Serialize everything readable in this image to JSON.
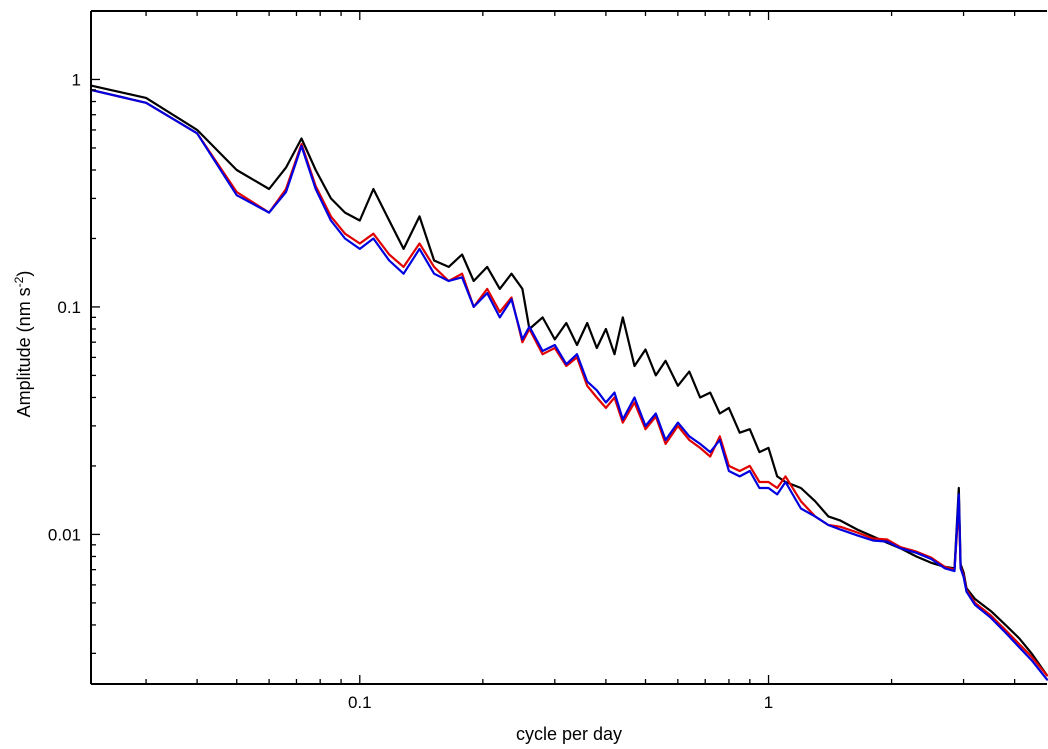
{
  "chart_data": {
    "type": "line",
    "title": "",
    "xlabel": "cycle per day",
    "ylabel": "Amplitude (nm s^-2)",
    "ylabel_parts": {
      "pre": "Amplitude (nm s",
      "sup": "-2",
      "post": ")"
    },
    "x_scale": "log",
    "y_scale": "log",
    "xlim": [
      0.022,
      4.8
    ],
    "ylim": [
      0.0022,
      2.0
    ],
    "x_ticks": [
      {
        "value": 0.1,
        "label": "0.1"
      },
      {
        "value": 1,
        "label": "1"
      }
    ],
    "y_ticks": [
      {
        "value": 1,
        "label": "1"
      },
      {
        "value": 0.1,
        "label": "0.1"
      },
      {
        "value": 0.01,
        "label": "0.01"
      }
    ],
    "grid": false,
    "series": [
      {
        "color": "#000000",
        "x": [
          0.022,
          0.03,
          0.04,
          0.05,
          0.06,
          0.066,
          0.072,
          0.078,
          0.085,
          0.092,
          0.1,
          0.108,
          0.118,
          0.128,
          0.14,
          0.152,
          0.165,
          0.178,
          0.19,
          0.205,
          0.22,
          0.235,
          0.25,
          0.26,
          0.28,
          0.3,
          0.32,
          0.34,
          0.36,
          0.38,
          0.4,
          0.42,
          0.44,
          0.47,
          0.5,
          0.53,
          0.56,
          0.6,
          0.64,
          0.68,
          0.72,
          0.76,
          0.8,
          0.85,
          0.9,
          0.95,
          1.0,
          1.05,
          1.1,
          1.2,
          1.3,
          1.4,
          1.5,
          1.65,
          1.8,
          1.95,
          2.1,
          2.3,
          2.5,
          2.7,
          2.85,
          2.92,
          2.95,
          3.0,
          3.05,
          3.2,
          3.5,
          3.8,
          4.1,
          4.4,
          4.8
        ],
        "y": [
          0.94,
          0.83,
          0.6,
          0.4,
          0.33,
          0.41,
          0.55,
          0.4,
          0.3,
          0.26,
          0.24,
          0.33,
          0.24,
          0.18,
          0.25,
          0.16,
          0.15,
          0.17,
          0.13,
          0.15,
          0.12,
          0.14,
          0.12,
          0.08,
          0.09,
          0.072,
          0.085,
          0.068,
          0.085,
          0.066,
          0.08,
          0.062,
          0.09,
          0.055,
          0.065,
          0.05,
          0.058,
          0.045,
          0.052,
          0.04,
          0.042,
          0.034,
          0.036,
          0.028,
          0.029,
          0.023,
          0.024,
          0.018,
          0.017,
          0.016,
          0.014,
          0.012,
          0.0115,
          0.0105,
          0.0098,
          0.0092,
          0.0087,
          0.008,
          0.0075,
          0.0072,
          0.0071,
          0.016,
          0.0074,
          0.0068,
          0.0058,
          0.0052,
          0.0046,
          0.004,
          0.0035,
          0.003,
          0.0024
        ]
      },
      {
        "color": "#e00000",
        "x": [
          0.022,
          0.03,
          0.04,
          0.05,
          0.06,
          0.066,
          0.072,
          0.078,
          0.085,
          0.092,
          0.1,
          0.108,
          0.118,
          0.128,
          0.14,
          0.152,
          0.165,
          0.178,
          0.19,
          0.205,
          0.22,
          0.235,
          0.25,
          0.26,
          0.28,
          0.3,
          0.32,
          0.34,
          0.36,
          0.38,
          0.4,
          0.42,
          0.44,
          0.47,
          0.5,
          0.53,
          0.56,
          0.6,
          0.64,
          0.68,
          0.72,
          0.76,
          0.8,
          0.85,
          0.9,
          0.95,
          1.0,
          1.05,
          1.1,
          1.2,
          1.3,
          1.4,
          1.5,
          1.65,
          1.8,
          1.95,
          2.1,
          2.3,
          2.5,
          2.7,
          2.85,
          2.92,
          2.95,
          3.0,
          3.05,
          3.2,
          3.5,
          3.8,
          4.1,
          4.4,
          4.8
        ],
        "y": [
          0.9,
          0.79,
          0.58,
          0.32,
          0.26,
          0.33,
          0.52,
          0.34,
          0.25,
          0.21,
          0.19,
          0.21,
          0.17,
          0.15,
          0.19,
          0.15,
          0.13,
          0.14,
          0.1,
          0.12,
          0.095,
          0.11,
          0.07,
          0.08,
          0.062,
          0.066,
          0.055,
          0.06,
          0.045,
          0.04,
          0.036,
          0.04,
          0.031,
          0.038,
          0.029,
          0.033,
          0.025,
          0.03,
          0.026,
          0.024,
          0.022,
          0.027,
          0.02,
          0.019,
          0.02,
          0.017,
          0.017,
          0.016,
          0.018,
          0.014,
          0.012,
          0.011,
          0.0108,
          0.0102,
          0.0096,
          0.0095,
          0.0088,
          0.0084,
          0.0079,
          0.0072,
          0.007,
          0.0135,
          0.0072,
          0.0066,
          0.0057,
          0.005,
          0.0044,
          0.0038,
          0.0033,
          0.0029,
          0.0024
        ]
      },
      {
        "color": "#0000e0",
        "x": [
          0.022,
          0.03,
          0.04,
          0.05,
          0.06,
          0.066,
          0.072,
          0.078,
          0.085,
          0.092,
          0.1,
          0.108,
          0.118,
          0.128,
          0.14,
          0.152,
          0.165,
          0.178,
          0.19,
          0.205,
          0.22,
          0.235,
          0.25,
          0.26,
          0.28,
          0.3,
          0.32,
          0.34,
          0.36,
          0.38,
          0.4,
          0.42,
          0.44,
          0.47,
          0.5,
          0.53,
          0.56,
          0.6,
          0.64,
          0.68,
          0.72,
          0.76,
          0.8,
          0.85,
          0.9,
          0.95,
          1.0,
          1.05,
          1.1,
          1.2,
          1.3,
          1.4,
          1.5,
          1.65,
          1.8,
          1.95,
          2.1,
          2.3,
          2.5,
          2.7,
          2.85,
          2.92,
          2.95,
          3.0,
          3.05,
          3.2,
          3.5,
          3.8,
          4.1,
          4.4,
          4.8
        ],
        "y": [
          0.9,
          0.79,
          0.58,
          0.31,
          0.26,
          0.32,
          0.51,
          0.33,
          0.24,
          0.2,
          0.18,
          0.2,
          0.16,
          0.14,
          0.18,
          0.14,
          0.13,
          0.135,
          0.1,
          0.115,
          0.09,
          0.108,
          0.072,
          0.082,
          0.064,
          0.068,
          0.056,
          0.062,
          0.047,
          0.043,
          0.038,
          0.042,
          0.032,
          0.04,
          0.03,
          0.034,
          0.026,
          0.031,
          0.027,
          0.025,
          0.023,
          0.026,
          0.019,
          0.018,
          0.019,
          0.016,
          0.016,
          0.015,
          0.017,
          0.013,
          0.012,
          0.011,
          0.0105,
          0.0099,
          0.0094,
          0.0093,
          0.0087,
          0.0083,
          0.0078,
          0.0071,
          0.0069,
          0.015,
          0.0071,
          0.0065,
          0.0056,
          0.0049,
          0.0043,
          0.0037,
          0.0032,
          0.0028,
          0.0023
        ]
      }
    ]
  }
}
